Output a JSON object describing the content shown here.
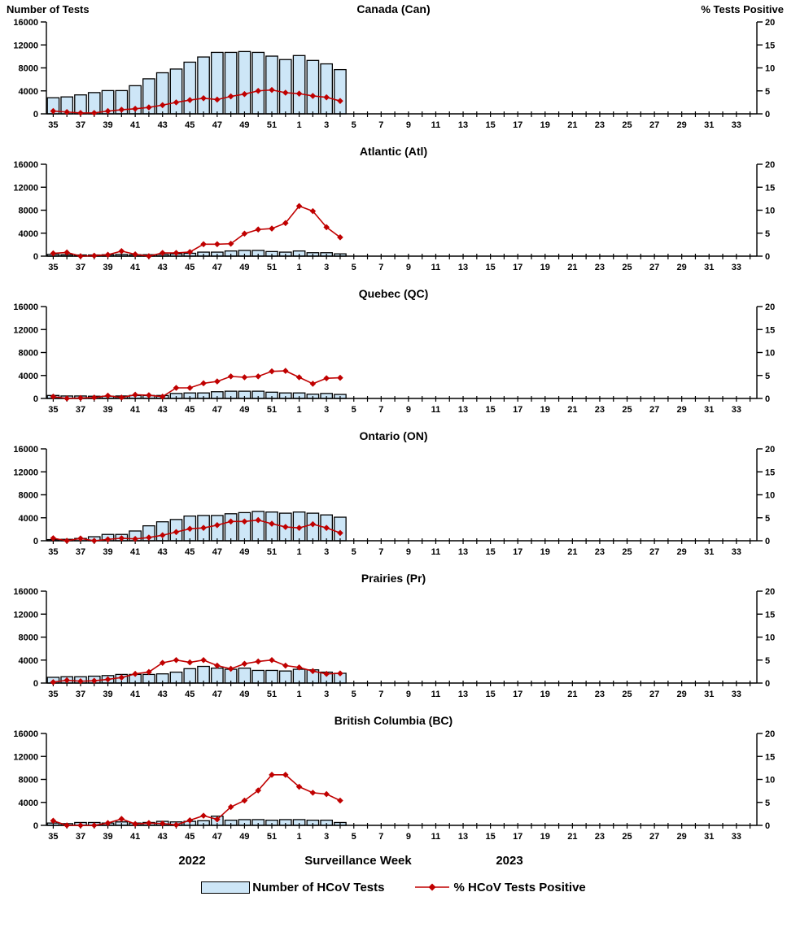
{
  "labels": {
    "left_axis_title": "Number of Tests",
    "right_axis_title": "% Tests Positive",
    "x_axis_title": "Surveillance Week",
    "year_left": "2022",
    "year_right": "2023"
  },
  "legend": {
    "bar_label": "Number of HCoV Tests",
    "line_label": "% HCoV Tests Positive"
  },
  "colors": {
    "bar_fill": "#CDE6F7",
    "bar_stroke": "#000000",
    "line": "#C00000",
    "text": "#000000"
  },
  "axes": {
    "week_start": 35,
    "week_end": 34,
    "x_tick_labels": [
      "35",
      "37",
      "39",
      "41",
      "43",
      "45",
      "47",
      "49",
      "51",
      "1",
      "3",
      "5",
      "7",
      "9",
      "11",
      "13",
      "15",
      "17",
      "19",
      "21",
      "23",
      "25",
      "27",
      "29",
      "31",
      "33"
    ],
    "left_ticks": [
      0,
      4000,
      8000,
      12000,
      16000
    ],
    "right_ticks": [
      0,
      5,
      10,
      15,
      20
    ],
    "ylim_left": [
      0,
      16000
    ],
    "ylim_right": [
      0,
      20
    ],
    "left_tick_labels": [
      "0",
      "4000",
      "8000",
      "12000",
      "16000"
    ],
    "right_tick_labels": [
      "0",
      "5",
      "10",
      "15",
      "20"
    ]
  },
  "chart_data": [
    {
      "type": "bar",
      "title": "Canada (Can)",
      "categories": [
        "35",
        "36",
        "37",
        "38",
        "39",
        "40",
        "41",
        "42",
        "43",
        "44",
        "45",
        "46",
        "47",
        "48",
        "49",
        "50",
        "51",
        "52",
        "1",
        "2",
        "3",
        "4"
      ],
      "series": [
        {
          "name": "Number of HCoV Tests",
          "type": "bar",
          "axis": "left",
          "values": [
            2800,
            2950,
            3300,
            3700,
            4050,
            4050,
            4900,
            6100,
            7150,
            7800,
            9000,
            9900,
            10700,
            10700,
            10850,
            10700,
            10050,
            9450,
            10150,
            9300,
            8700,
            7700
          ]
        },
        {
          "name": "% HCoV Tests Positive",
          "type": "line",
          "axis": "right",
          "values": [
            0.6,
            0.4,
            0.2,
            0.2,
            0.6,
            0.9,
            1.1,
            1.4,
            1.9,
            2.5,
            3.0,
            3.4,
            3.1,
            3.8,
            4.3,
            5.0,
            5.2,
            4.6,
            4.4,
            3.9,
            3.6,
            2.8
          ]
        }
      ]
    },
    {
      "type": "bar",
      "title": "Atlantic (Atl)",
      "categories": [
        "35",
        "36",
        "37",
        "38",
        "39",
        "40",
        "41",
        "42",
        "43",
        "44",
        "45",
        "46",
        "47",
        "48",
        "49",
        "50",
        "51",
        "52",
        "1",
        "2",
        "3",
        "4"
      ],
      "series": [
        {
          "name": "Number of HCoV Tests",
          "type": "bar",
          "axis": "left",
          "values": [
            300,
            250,
            200,
            200,
            250,
            300,
            250,
            250,
            300,
            400,
            500,
            700,
            700,
            900,
            1000,
            1000,
            800,
            700,
            900,
            600,
            600,
            400
          ]
        },
        {
          "name": "% HCoV Tests Positive",
          "type": "line",
          "axis": "right",
          "values": [
            0.6,
            0.8,
            0.0,
            0.1,
            0.3,
            1.1,
            0.4,
            0.0,
            0.7,
            0.7,
            0.9,
            2.6,
            2.6,
            2.7,
            4.9,
            5.8,
            6.0,
            7.2,
            10.9,
            9.8,
            6.3,
            4.1
          ]
        }
      ]
    },
    {
      "type": "bar",
      "title": "Quebec (QC)",
      "categories": [
        "35",
        "36",
        "37",
        "38",
        "39",
        "40",
        "41",
        "42",
        "43",
        "44",
        "45",
        "46",
        "47",
        "48",
        "49",
        "50",
        "51",
        "52",
        "1",
        "2",
        "3",
        "4"
      ],
      "series": [
        {
          "name": "Number of HCoV Tests",
          "type": "bar",
          "axis": "left",
          "values": [
            520,
            430,
            430,
            390,
            390,
            430,
            520,
            520,
            520,
            870,
            960,
            960,
            1170,
            1260,
            1260,
            1260,
            1090,
            960,
            960,
            740,
            870,
            700
          ]
        },
        {
          "name": "% HCoV Tests Positive",
          "type": "line",
          "axis": "right",
          "values": [
            0.4,
            0.0,
            0.1,
            0.2,
            0.6,
            0.2,
            0.8,
            0.7,
            0.4,
            2.3,
            2.3,
            3.3,
            3.7,
            4.8,
            4.6,
            4.8,
            5.9,
            6.0,
            4.6,
            3.2,
            4.4,
            4.5
          ]
        }
      ]
    },
    {
      "type": "bar",
      "title": "Ontario (ON)",
      "categories": [
        "35",
        "36",
        "37",
        "38",
        "39",
        "40",
        "41",
        "42",
        "43",
        "44",
        "45",
        "46",
        "47",
        "48",
        "49",
        "50",
        "51",
        "52",
        "1",
        "2",
        "3",
        "4"
      ],
      "series": [
        {
          "name": "Number of HCoV Tests",
          "type": "bar",
          "axis": "left",
          "values": [
            200,
            250,
            400,
            700,
            1100,
            1100,
            1700,
            2600,
            3300,
            3700,
            4300,
            4400,
            4400,
            4700,
            4900,
            5100,
            5000,
            4800,
            5000,
            4800,
            4500,
            4100
          ]
        },
        {
          "name": "% HCoV Tests Positive",
          "type": "line",
          "axis": "right",
          "values": [
            0.55,
            0.0,
            0.5,
            0.0,
            0.3,
            0.55,
            0.4,
            0.7,
            1.2,
            1.9,
            2.6,
            2.8,
            3.4,
            4.2,
            4.2,
            4.5,
            3.7,
            3.0,
            2.8,
            3.6,
            2.8,
            1.7
          ]
        }
      ]
    },
    {
      "type": "bar",
      "title": "Prairies (Pr)",
      "categories": [
        "35",
        "36",
        "37",
        "38",
        "39",
        "40",
        "41",
        "42",
        "43",
        "44",
        "45",
        "46",
        "47",
        "48",
        "49",
        "50",
        "51",
        "52",
        "1",
        "2",
        "3",
        "4"
      ],
      "series": [
        {
          "name": "Number of HCoV Tests",
          "type": "bar",
          "axis": "left",
          "values": [
            1000,
            1100,
            1100,
            1200,
            1300,
            1500,
            1500,
            1500,
            1600,
            1900,
            2500,
            2900,
            2600,
            2400,
            2600,
            2200,
            2200,
            2100,
            2400,
            2300,
            1900,
            1700
          ]
        },
        {
          "name": "% HCoV Tests Positive",
          "type": "line",
          "axis": "right",
          "values": [
            0.2,
            0.6,
            0.4,
            0.5,
            0.8,
            1.2,
            2.0,
            2.4,
            4.4,
            5.0,
            4.5,
            5.0,
            3.8,
            3.1,
            4.2,
            4.7,
            5.0,
            3.8,
            3.4,
            2.6,
            2.0,
            2.1
          ]
        }
      ]
    },
    {
      "type": "bar",
      "title": "British Columbia (BC)",
      "categories": [
        "35",
        "36",
        "37",
        "38",
        "39",
        "40",
        "41",
        "42",
        "43",
        "44",
        "45",
        "46",
        "47",
        "48",
        "49",
        "50",
        "51",
        "52",
        "1",
        "2",
        "3",
        "4"
      ],
      "series": [
        {
          "name": "Number of HCoV Tests",
          "type": "bar",
          "axis": "left",
          "values": [
            400,
            300,
            500,
            500,
            400,
            600,
            400,
            500,
            700,
            600,
            700,
            800,
            1600,
            900,
            1000,
            1000,
            900,
            1000,
            1000,
            900,
            900,
            500
          ]
        },
        {
          "name": "% HCoV Tests Positive",
          "type": "line",
          "axis": "right",
          "values": [
            1.0,
            0.0,
            0.0,
            0.0,
            0.5,
            1.4,
            0.3,
            0.5,
            0.4,
            0.1,
            1.1,
            2.1,
            1.3,
            4.0,
            5.4,
            7.6,
            11.0,
            11.0,
            8.4,
            7.1,
            6.8,
            5.4
          ]
        }
      ]
    }
  ]
}
